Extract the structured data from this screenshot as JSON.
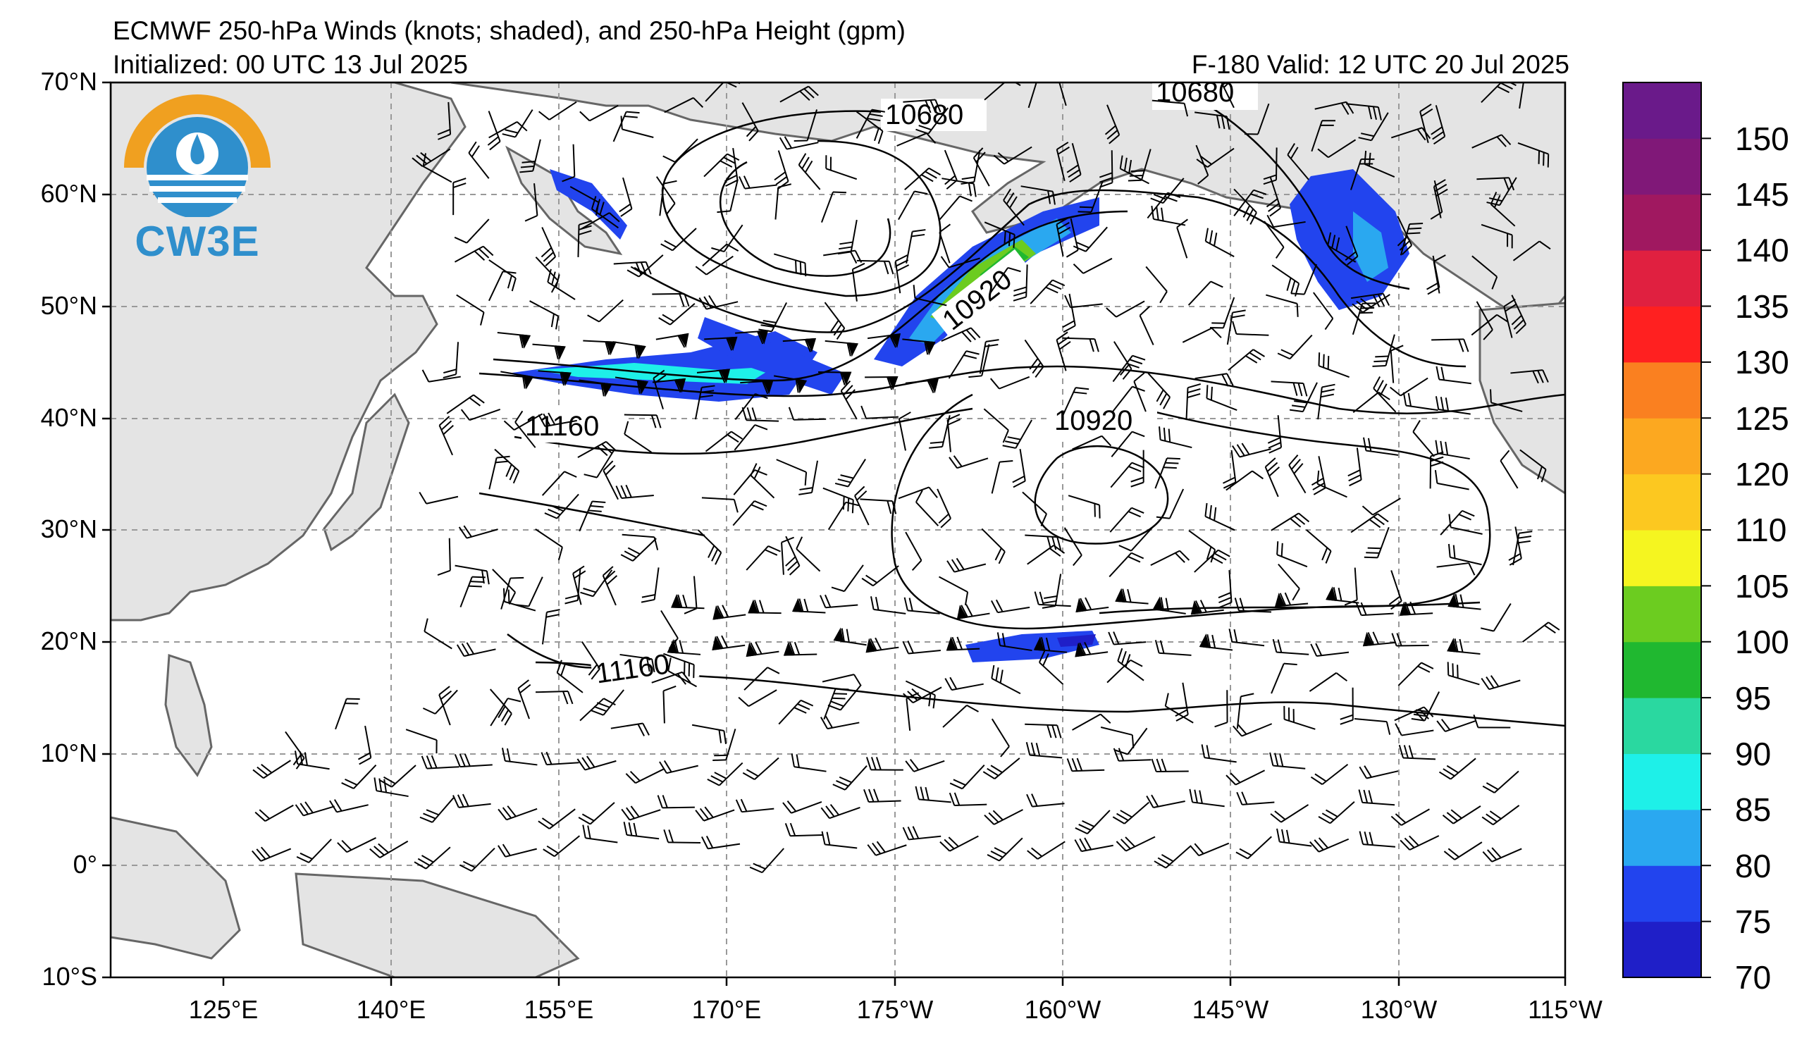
{
  "header": {
    "title": "ECMWF 250-hPa Winds (knots; shaded), and 250-hPa Height (gpm)",
    "initialized": "Initialized: 00 UTC 13 Jul 2025",
    "valid": "F-180  Valid: 12 UTC 20 Jul 2025"
  },
  "map": {
    "lat_labels": [
      "70°N",
      "60°N",
      "50°N",
      "40°N",
      "30°N",
      "20°N",
      "10°N",
      "0°",
      "10°S"
    ],
    "lon_labels": [
      "125°E",
      "140°E",
      "155°E",
      "170°E",
      "175°W",
      "160°W",
      "145°W",
      "130°W",
      "115°W"
    ],
    "contour_labels": [
      {
        "text": "10680",
        "contour": "10680-west"
      },
      {
        "text": "10680",
        "contour": "10680-east"
      },
      {
        "text": "10920",
        "contour": "10920-jet"
      },
      {
        "text": "10920",
        "contour": "10920-central"
      },
      {
        "text": "11160",
        "contour": "11160-north"
      },
      {
        "text": "11160",
        "contour": "11160-south"
      }
    ]
  },
  "colorbar": {
    "labels": [
      "150",
      "145",
      "140",
      "135",
      "130",
      "125",
      "120",
      "110",
      "105",
      "100",
      "95",
      "90",
      "85",
      "80",
      "75",
      "70"
    ],
    "colors": [
      "#1f1fc8",
      "#2244ee",
      "#2aa8f0",
      "#1ef0e8",
      "#2ad8a0",
      "#20b830",
      "#6ccc20",
      "#f5f520",
      "#fcc820",
      "#fca820",
      "#fa8020",
      "#ff2020",
      "#e02040",
      "#a01860",
      "#801878",
      "#6a1a8a"
    ]
  },
  "logo": {
    "text": "CW3E"
  }
}
